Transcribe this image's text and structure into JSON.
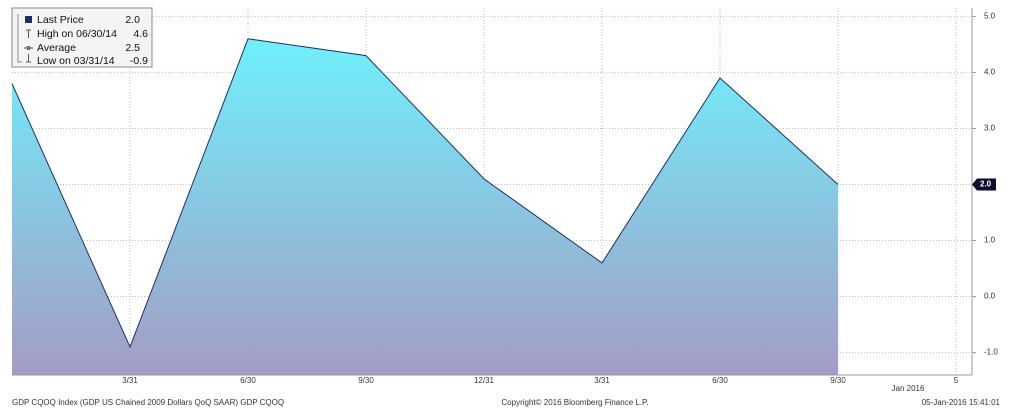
{
  "chart_data": {
    "type": "area",
    "categories": [
      null,
      "3/31",
      "6/30",
      "9/30",
      "12/31",
      "3/31",
      "6/30",
      "9/30",
      "5"
    ],
    "period_label": "Jan 2016",
    "series": [
      {
        "name": "Last Price",
        "color": "#1f2f66",
        "values": [
          3.8,
          -0.9,
          4.6,
          4.3,
          2.1,
          0.6,
          3.9,
          2.0,
          null
        ]
      }
    ],
    "ylim": [
      -1.4,
      5.15
    ],
    "yticks": [
      {
        "value": -1,
        "label": "-1.0"
      },
      {
        "value": 0,
        "label": "0.0"
      },
      {
        "value": 1,
        "label": "1.0"
      },
      {
        "value": 2,
        "label": "2.0"
      },
      {
        "value": 3,
        "label": "3.0"
      },
      {
        "value": 4,
        "label": "4.0"
      },
      {
        "value": 5,
        "label": "5.0"
      }
    ],
    "grid": true,
    "last_price": {
      "value": 2,
      "label": "2.0"
    },
    "legend": [
      {
        "name": "Last Price",
        "value": "2.0"
      },
      {
        "name": "High on 06/30/14",
        "value": "4.6"
      },
      {
        "name": "Average",
        "value": "2.5"
      },
      {
        "name": "Low on 03/31/14",
        "value": "-0.9"
      }
    ],
    "footer_left": "GDP CQOQ Index (GDP US Chained 2009 Dollars QoQ SAAR) GDP CQOQ",
    "footer_center": "Copyright© 2016 Bloomberg Finance L.P.",
    "footer_right": "05-Jan-2016 15:41:01"
  }
}
